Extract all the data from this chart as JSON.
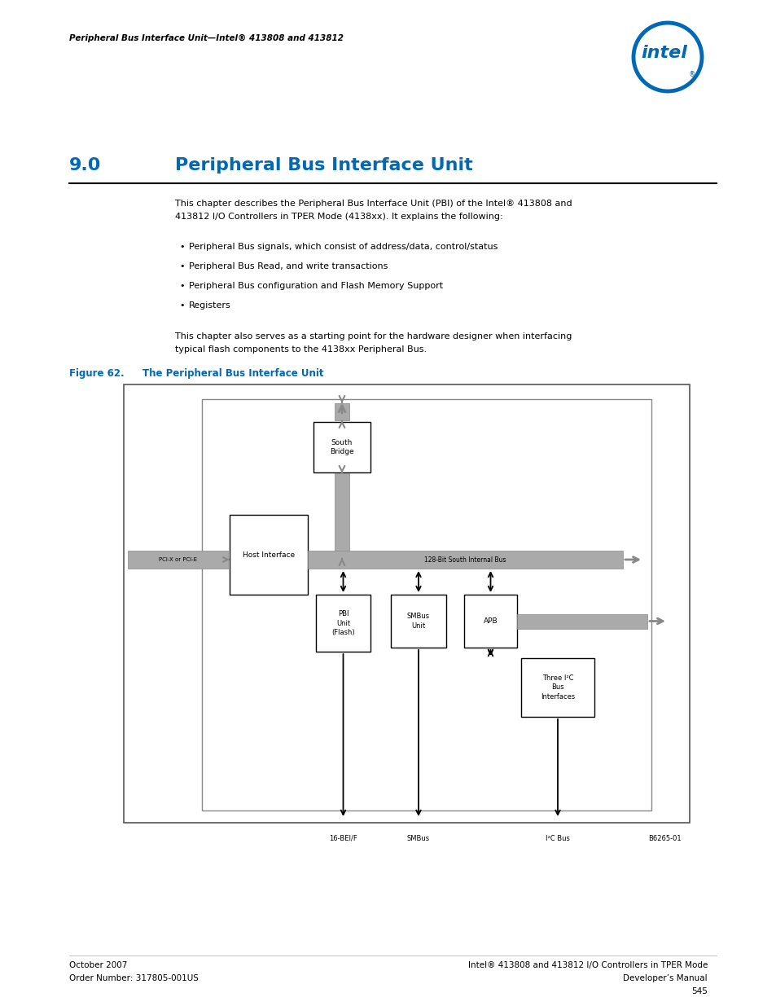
{
  "bg_color": "#ffffff",
  "page_header_text": "Peripheral Bus Interface Unit—Intel® 413808 and 413812",
  "intel_logo_color": "#0068b5",
  "section_number": "9.0",
  "section_title": "Peripheral Bus Interface Unit",
  "section_title_color": "#0068b5",
  "body_text_1a": "This chapter describes the Peripheral Bus Interface Unit (PBI) of the Intel® 413808 and",
  "body_text_1b": "413812 I/O Controllers in TPER Mode (4138xx). It explains the following:",
  "bullet_points": [
    "Peripheral Bus signals, which consist of address/data, control/status",
    "Peripheral Bus Read, and write transactions",
    "Peripheral Bus configuration and Flash Memory Support",
    "Registers"
  ],
  "body_text_2a": "This chapter also serves as a starting point for the hardware designer when interfacing",
  "body_text_2b": "typical flash components to the 4138xx Peripheral Bus.",
  "figure_label": "Figure 62.",
  "figure_title": "The Peripheral Bus Interface Unit",
  "figure_label_color": "#0068b5",
  "footer_left_line1": "October 2007",
  "footer_left_line2": "Order Number: 317805-001US",
  "footer_right_line1": "Intel® 413808 and 413812 I/O Controllers in TPER Mode",
  "footer_right_line2": "Developer’s Manual",
  "footer_right_line3": "545",
  "diag": {
    "pcix_label": "PCI-X or PCI-E",
    "bus_label": "128-Bit South Internal Bus",
    "sb_label": "South\nBridge",
    "hi_label": "Host Interface",
    "pbi_label": "PBI\nUnit\n(Flash)",
    "smbus_label": "SMBus\nUnit",
    "apb_label": "APB",
    "ic_label": "Three I²C\nBus\nInterfaces",
    "label_16bit": "16-BEI/F",
    "label_smbus": "SMBus",
    "label_ic": "I²C Bus",
    "label_b6265": "B6265-01",
    "gray_color": "#aaaaaa",
    "gray_edge": "#888888",
    "box_edge": "#000000",
    "arrow_color": "#000000"
  }
}
